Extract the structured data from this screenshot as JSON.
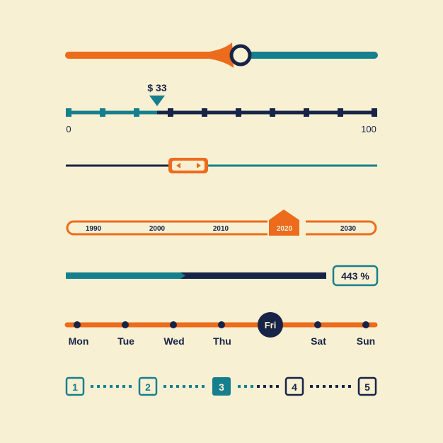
{
  "colors": {
    "background": "#f8f0d2",
    "orange": "#ec6b1c",
    "teal": "#167f8e",
    "navy": "#172347"
  },
  "slider_1": {
    "value": 0.56
  },
  "price_slider": {
    "value_label": "$ 33",
    "value": 33,
    "min_label": "0",
    "max_label": "100",
    "min": 0,
    "max": 100
  },
  "range_slider": {
    "handle_left_icon": "triangle-left-icon",
    "handle_right_icon": "triangle-right-icon",
    "value": 0.4
  },
  "year_slider": {
    "years": [
      "1990",
      "2000",
      "2010",
      "2020",
      "2030"
    ],
    "selected": "2020"
  },
  "progress_bar": {
    "value_label": "443 %",
    "teal_fraction": 0.39
  },
  "day_slider": {
    "days": [
      "Mon",
      "Tue",
      "Wed",
      "Thu",
      "Fri",
      "Sat",
      "Sun"
    ],
    "selected": "Fri"
  },
  "stepper": {
    "steps": [
      "1",
      "2",
      "3",
      "4",
      "5"
    ],
    "current": "3"
  }
}
